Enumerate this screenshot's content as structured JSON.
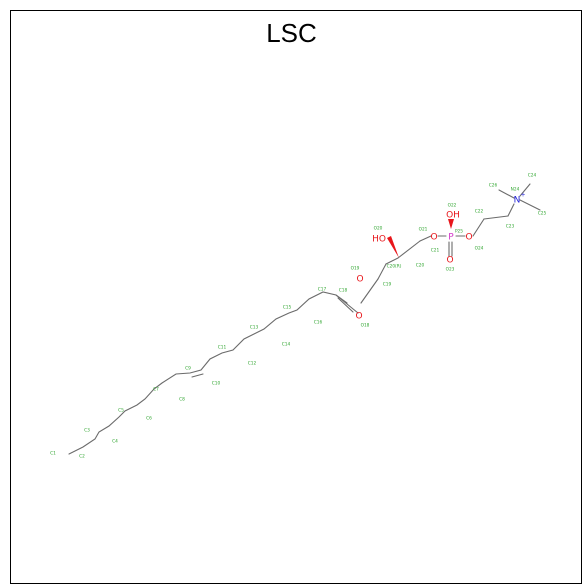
{
  "title": "LSC",
  "colors": {
    "carbon_label": "#2fa52f",
    "bond": "#6b6b6b",
    "oxygen": "#e8161b",
    "phosphorus": "#d236c9",
    "nitrogen": "#1d1dd6"
  },
  "atoms": {
    "C1": "C1",
    "C2": "C2",
    "C3": "C3",
    "C4": "C4",
    "C5": "C5",
    "C6": "C6",
    "C7": "C7",
    "C8": "C8",
    "C9": "C9",
    "C10": "C10",
    "C11": "C11",
    "C12": "C12",
    "C13": "C13",
    "C14": "C14",
    "C15": "C15",
    "C16": "C16",
    "C17": "C17",
    "C18": "C18",
    "O18": "O18",
    "O19": "O19",
    "C19": "C19",
    "C20": "C20",
    "O20": "O20",
    "C21": "C21",
    "O21": "O21",
    "O22": "O22",
    "O23": "O23",
    "O24": "O24",
    "C22": "C22",
    "C23": "C23",
    "N24": "N24",
    "C24": "C24",
    "C25": "C25",
    "C26": "C26",
    "P25": "P25",
    "O25": "O25",
    "C20R": "C20(R)"
  },
  "hetero": {
    "HO": "HO",
    "OH": "OH",
    "O_ester": "O",
    "O_carbonyl": "O",
    "O_left_phosphate": "O",
    "O_right_phosphate": "O",
    "O_double": "O",
    "P": "P",
    "N": "N",
    "N_charge": "+"
  }
}
